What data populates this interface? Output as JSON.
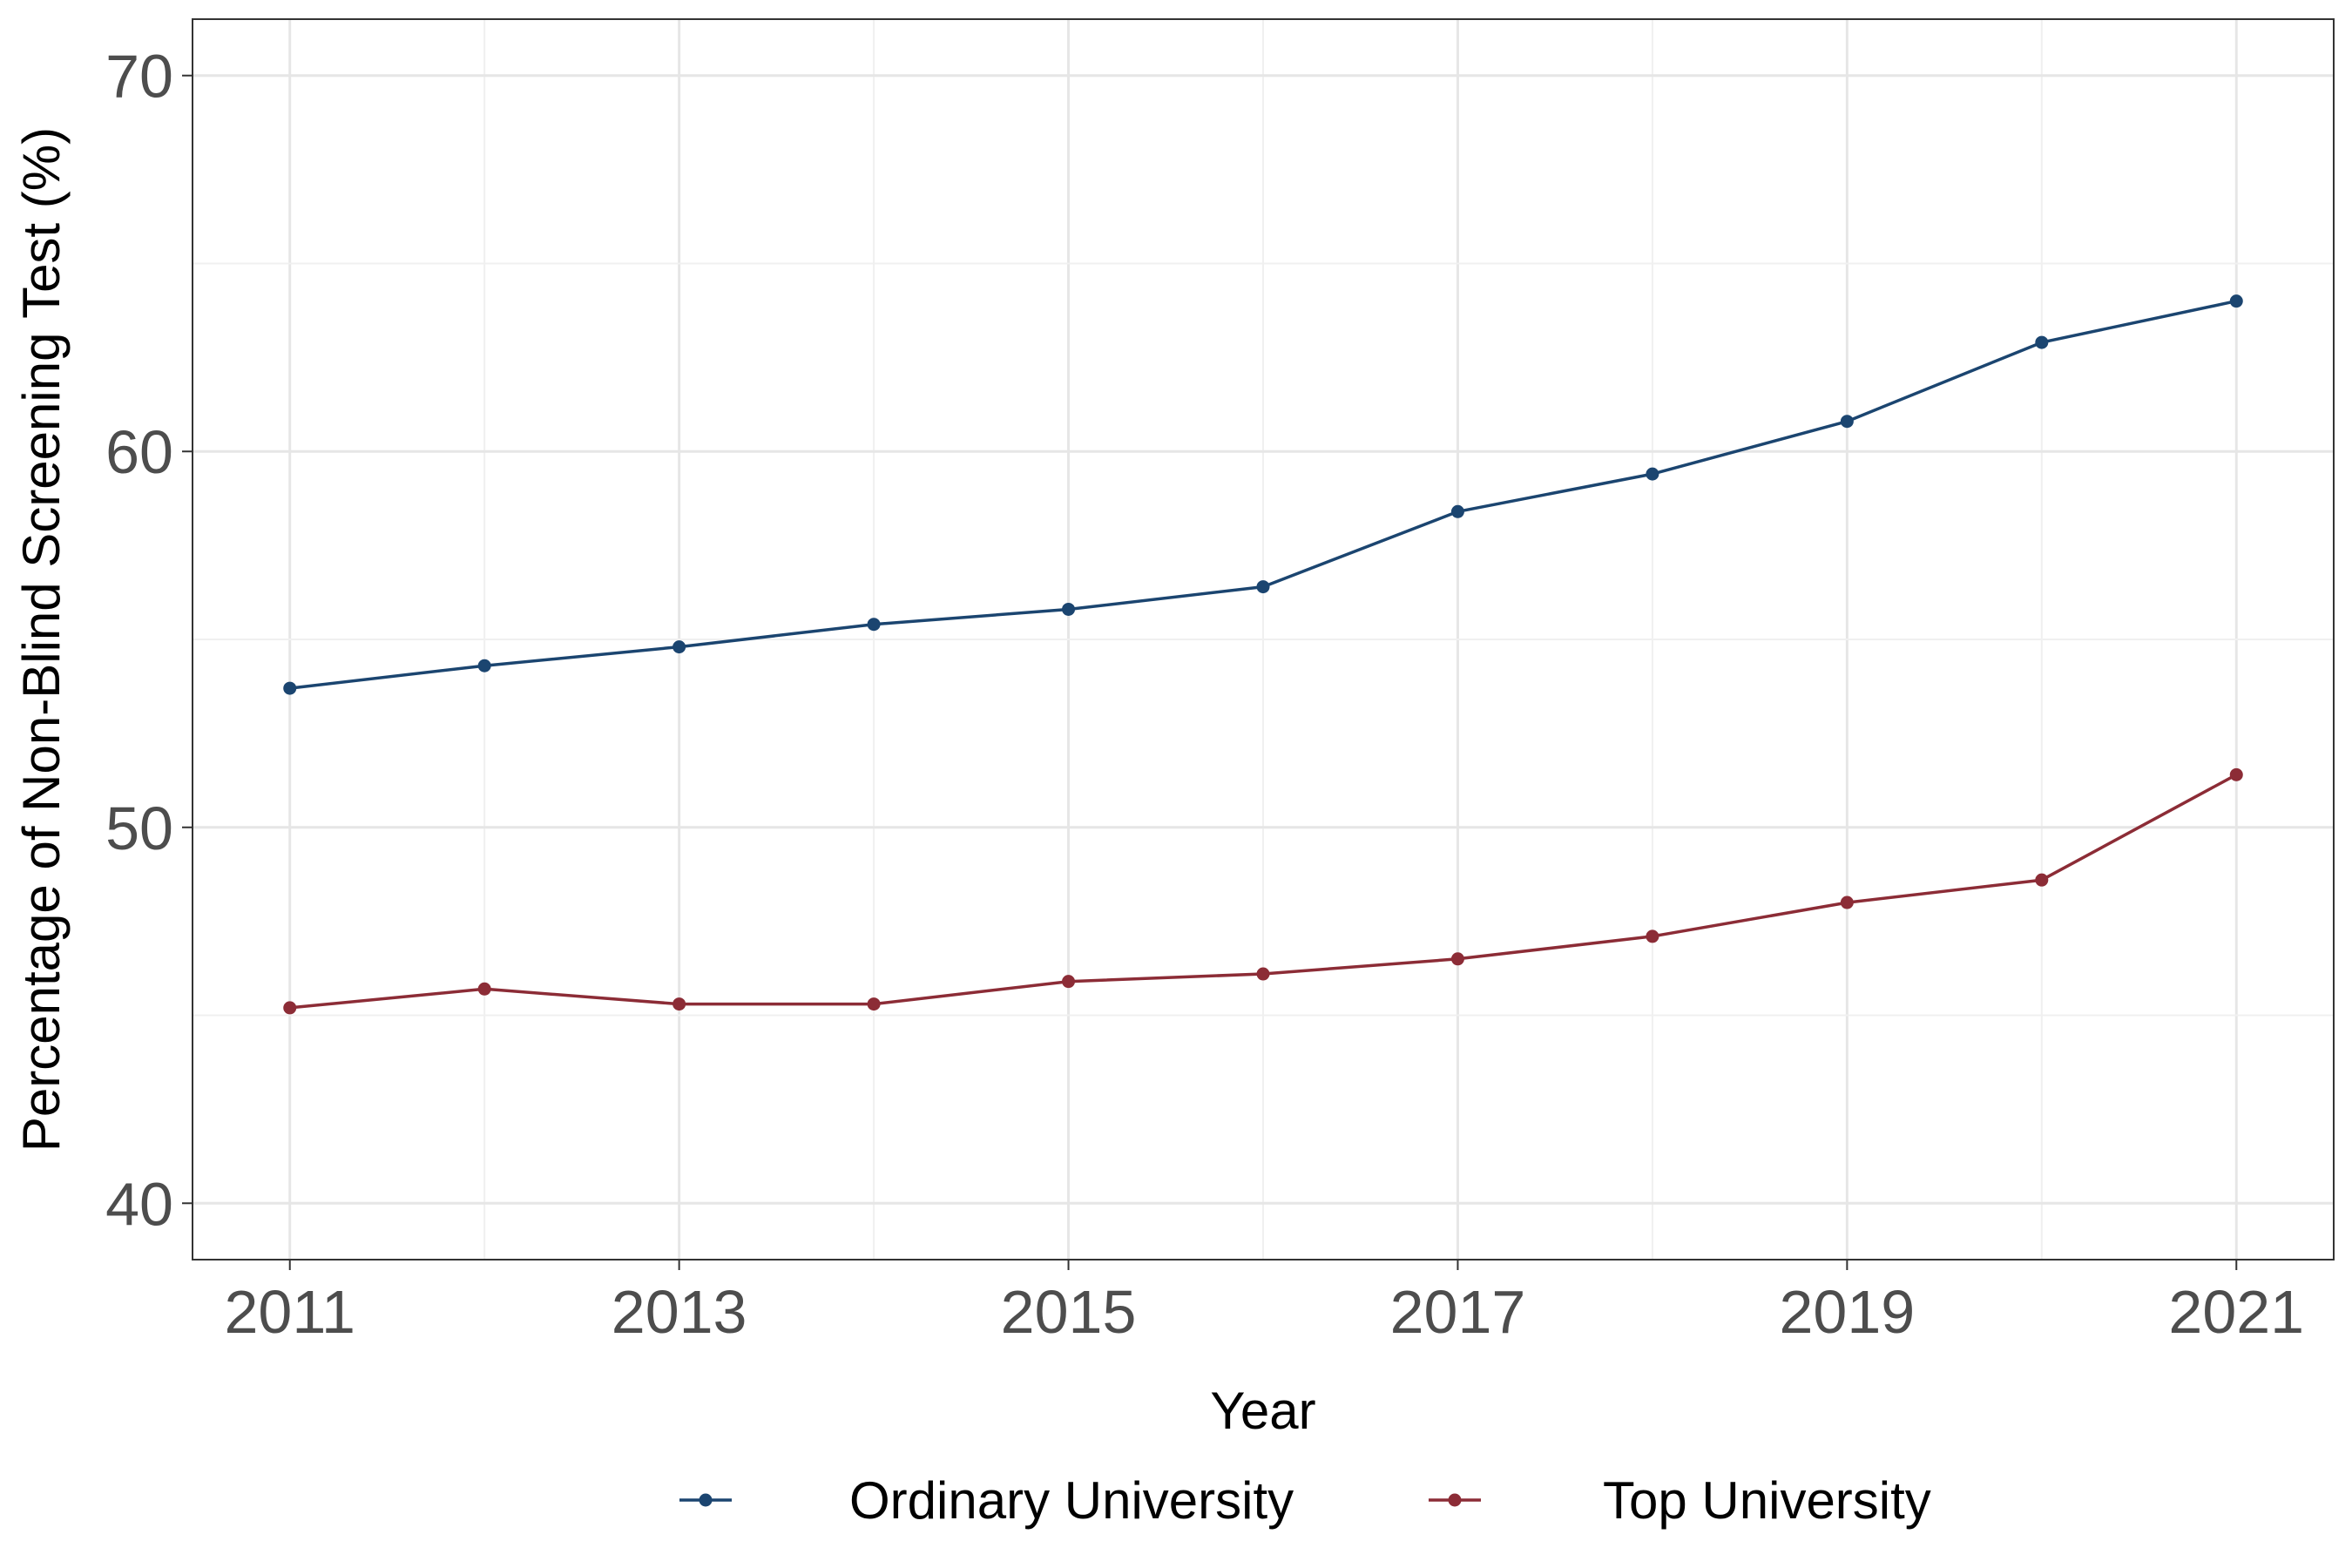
{
  "chart_data": {
    "type": "line",
    "xlabel": "Year",
    "ylabel": "Percentage of Non-Blind Screening Test (%)",
    "x": [
      2011,
      2012,
      2013,
      2014,
      2015,
      2016,
      2017,
      2018,
      2019,
      2020,
      2021
    ],
    "xticks": [
      "2011",
      "2013",
      "2015",
      "2017",
      "2019",
      "2021"
    ],
    "yticks": [
      "40",
      "50",
      "60",
      "70"
    ],
    "xlim": [
      2010.5,
      2021.5
    ],
    "ylim": [
      38.5,
      71.5
    ],
    "grid": true,
    "legend_position": "bottom",
    "series": [
      {
        "name": "Ordinary University",
        "color": "#1b4570",
        "values": [
          53.7,
          54.3,
          54.8,
          55.4,
          55.8,
          56.4,
          58.4,
          59.4,
          60.8,
          62.9,
          64.0
        ]
      },
      {
        "name": "Top University",
        "color": "#8c2c36",
        "values": [
          45.2,
          45.7,
          45.3,
          45.3,
          45.9,
          46.1,
          46.5,
          47.1,
          48.0,
          48.6,
          51.4
        ]
      }
    ]
  }
}
